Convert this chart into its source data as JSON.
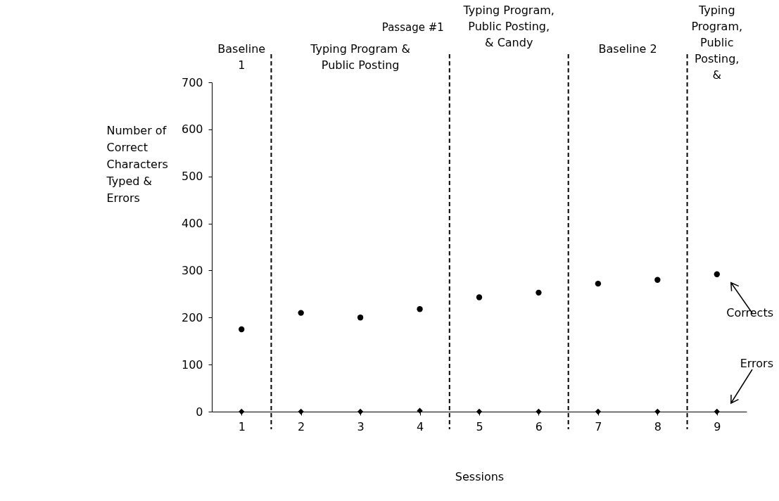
{
  "chart_data": {
    "type": "scatter",
    "xlabel": "Sessions",
    "ylabel": "Number of Correct Characters Typed & Errors",
    "x": [
      1,
      2,
      3,
      4,
      5,
      6,
      7,
      8,
      9
    ],
    "xlim": [
      0.5,
      9.5
    ],
    "xticks": [
      1,
      2,
      3,
      4,
      5,
      6,
      7,
      8,
      9
    ],
    "ylim": [
      0,
      700
    ],
    "yticks": [
      0,
      100,
      200,
      300,
      400,
      500,
      600,
      700
    ],
    "series": [
      {
        "name": "Corrects",
        "color": "#000000",
        "marker": "circle",
        "values": [
          175,
          210,
          200,
          218,
          243,
          253,
          272,
          280,
          292
        ]
      },
      {
        "name": "Errors",
        "color": "#000000",
        "marker": "diamond",
        "values": [
          0,
          0,
          0,
          2,
          0,
          0,
          0,
          0,
          0
        ]
      }
    ],
    "ref_lines": [
      {
        "axis": "x",
        "value": 1.5,
        "line_style": "dashed"
      },
      {
        "axis": "x",
        "value": 4.5,
        "label": "Passage #1",
        "line_style": "dashed"
      },
      {
        "axis": "x",
        "value": 6.5,
        "line_style": "dashed"
      },
      {
        "axis": "x",
        "value": 8.5,
        "line_style": "dashed"
      }
    ],
    "annotations": [
      "Baseline 1",
      "Typing Program & Public Posting",
      "Typing Program, Public Posting, & Candy",
      "Baseline 2",
      "Typing Program, Public Posting, &"
    ],
    "grid": false,
    "legend": false
  }
}
